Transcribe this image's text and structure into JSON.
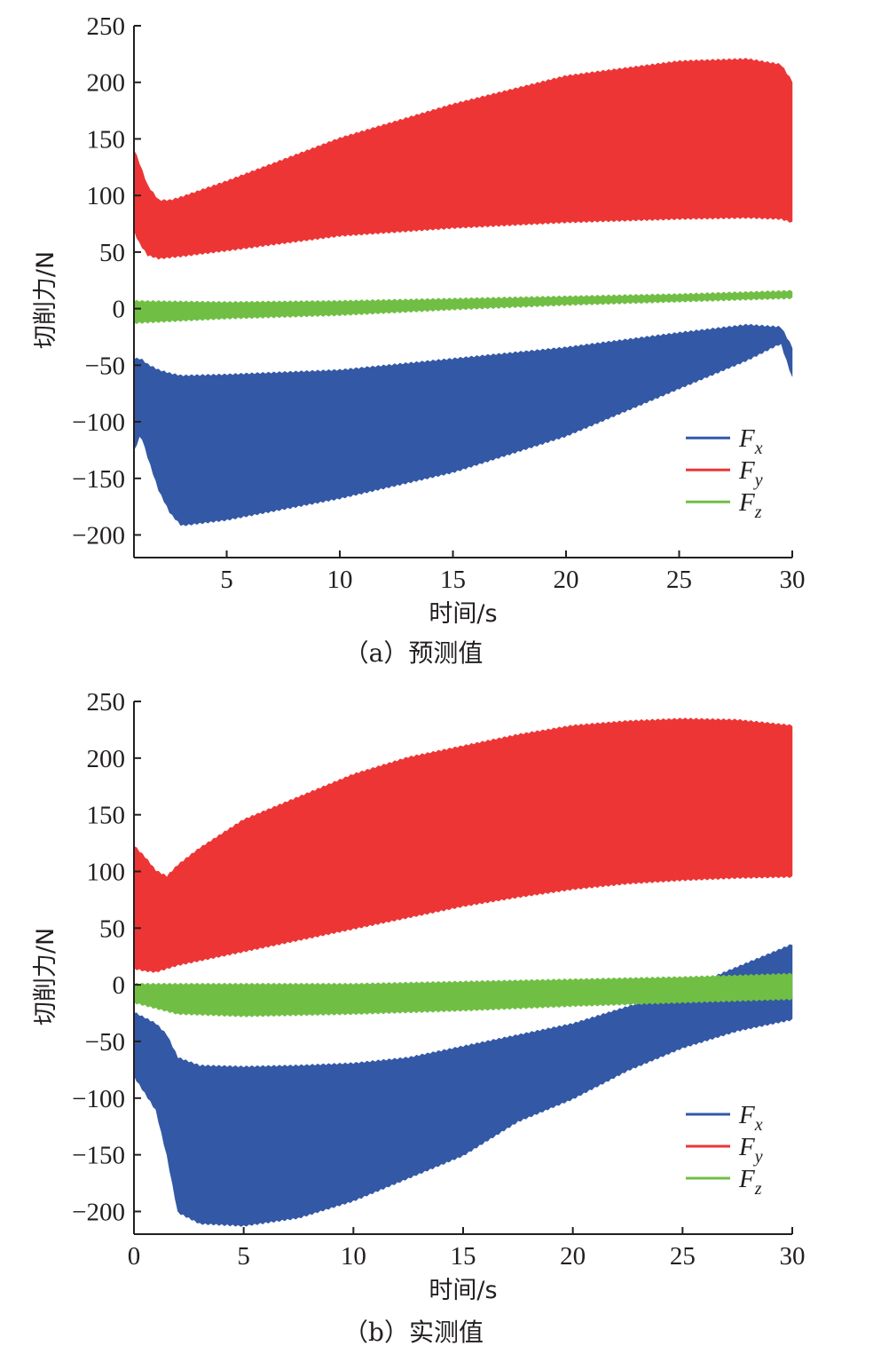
{
  "chart_data": [
    {
      "id": "a",
      "type": "area",
      "caption": "（a）预测值",
      "xlabel": "时间/s",
      "ylabel": "切削力/N",
      "xlim": [
        0.9,
        30
      ],
      "ylim": [
        -220,
        250
      ],
      "xticks": [
        5,
        10,
        15,
        20,
        25,
        30
      ],
      "yticks": [
        250,
        200,
        150,
        100,
        50,
        0,
        -50,
        -100,
        -150,
        -200
      ],
      "grid": false,
      "legend_position": "bottom-right",
      "series": [
        {
          "name": "F",
          "sub": "x",
          "color": "#3358a6",
          "x": [
            0.9,
            1.2,
            1.5,
            2.0,
            2.5,
            3.0,
            5,
            10,
            15,
            20,
            25,
            28,
            29.5,
            30
          ],
          "upper": [
            -45,
            -45,
            -50,
            -55,
            -58,
            -60,
            -59,
            -55,
            -45,
            -35,
            -22,
            -15,
            -17,
            -35
          ],
          "lower": [
            -125,
            -110,
            -130,
            -160,
            -180,
            -191,
            -186,
            -167,
            -144,
            -112,
            -70,
            -45,
            -30,
            -60
          ]
        },
        {
          "name": "F",
          "sub": "y",
          "color": "#ee3535",
          "x": [
            0.9,
            1.1,
            1.5,
            2.0,
            2.5,
            3.0,
            5,
            10,
            15,
            20,
            25,
            28,
            29.5,
            30
          ],
          "upper": [
            140,
            130,
            108,
            95,
            95,
            98,
            112,
            150,
            180,
            205,
            218,
            220,
            215,
            200
          ],
          "lower": [
            70,
            60,
            48,
            45,
            46,
            47,
            52,
            65,
            72,
            77,
            80,
            81,
            80,
            77
          ]
        },
        {
          "name": "F",
          "sub": "z",
          "color": "#70bf44",
          "x": [
            0.9,
            5,
            10,
            15,
            20,
            25,
            30
          ],
          "upper": [
            6,
            5,
            6,
            8,
            10,
            12,
            15
          ],
          "lower": [
            -12,
            -8,
            -5,
            0,
            4,
            7,
            10
          ]
        }
      ]
    },
    {
      "id": "b",
      "type": "area",
      "caption": "（b）实测值",
      "xlabel": "时间/s",
      "ylabel": "切削力/N",
      "xlim": [
        0,
        30
      ],
      "ylim": [
        -220,
        250
      ],
      "xticks": [
        0,
        5,
        10,
        15,
        20,
        25,
        30
      ],
      "yticks": [
        250,
        200,
        150,
        100,
        50,
        0,
        -50,
        -100,
        -150,
        -200
      ],
      "grid": false,
      "legend_position": "bottom-right",
      "series": [
        {
          "name": "F",
          "sub": "x",
          "color": "#3358a6",
          "x": [
            0,
            1.0,
            1.5,
            2.0,
            3.0,
            5,
            7.5,
            10,
            12.5,
            15,
            17.5,
            20,
            22.5,
            25,
            27.5,
            30
          ],
          "upper": [
            -25,
            -35,
            -45,
            -65,
            -72,
            -73,
            -72,
            -70,
            -65,
            -55,
            -45,
            -35,
            -20,
            -5,
            15,
            35
          ],
          "lower": [
            -80,
            -110,
            -150,
            -200,
            -210,
            -212,
            -205,
            -190,
            -170,
            -150,
            -120,
            -100,
            -75,
            -55,
            -40,
            -30
          ]
        },
        {
          "name": "F",
          "sub": "y",
          "color": "#ee3535",
          "x": [
            0,
            0.5,
            1.0,
            1.5,
            2.0,
            3.0,
            5,
            7.5,
            10,
            12.5,
            15,
            17.5,
            20,
            22.5,
            25,
            27.5,
            30
          ],
          "upper": [
            122,
            112,
            100,
            95,
            105,
            120,
            145,
            165,
            185,
            200,
            210,
            220,
            228,
            232,
            234,
            233,
            228
          ],
          "lower": [
            15,
            13,
            12,
            15,
            18,
            22,
            30,
            40,
            50,
            60,
            70,
            78,
            85,
            90,
            93,
            95,
            96
          ]
        },
        {
          "name": "F",
          "sub": "z",
          "color": "#70bf44",
          "x": [
            0,
            2,
            5,
            10,
            15,
            20,
            25,
            30
          ],
          "upper": [
            0,
            0,
            0,
            0,
            2,
            4,
            6,
            9
          ],
          "lower": [
            -15,
            -25,
            -27,
            -25,
            -22,
            -18,
            -15,
            -12
          ]
        }
      ]
    }
  ]
}
